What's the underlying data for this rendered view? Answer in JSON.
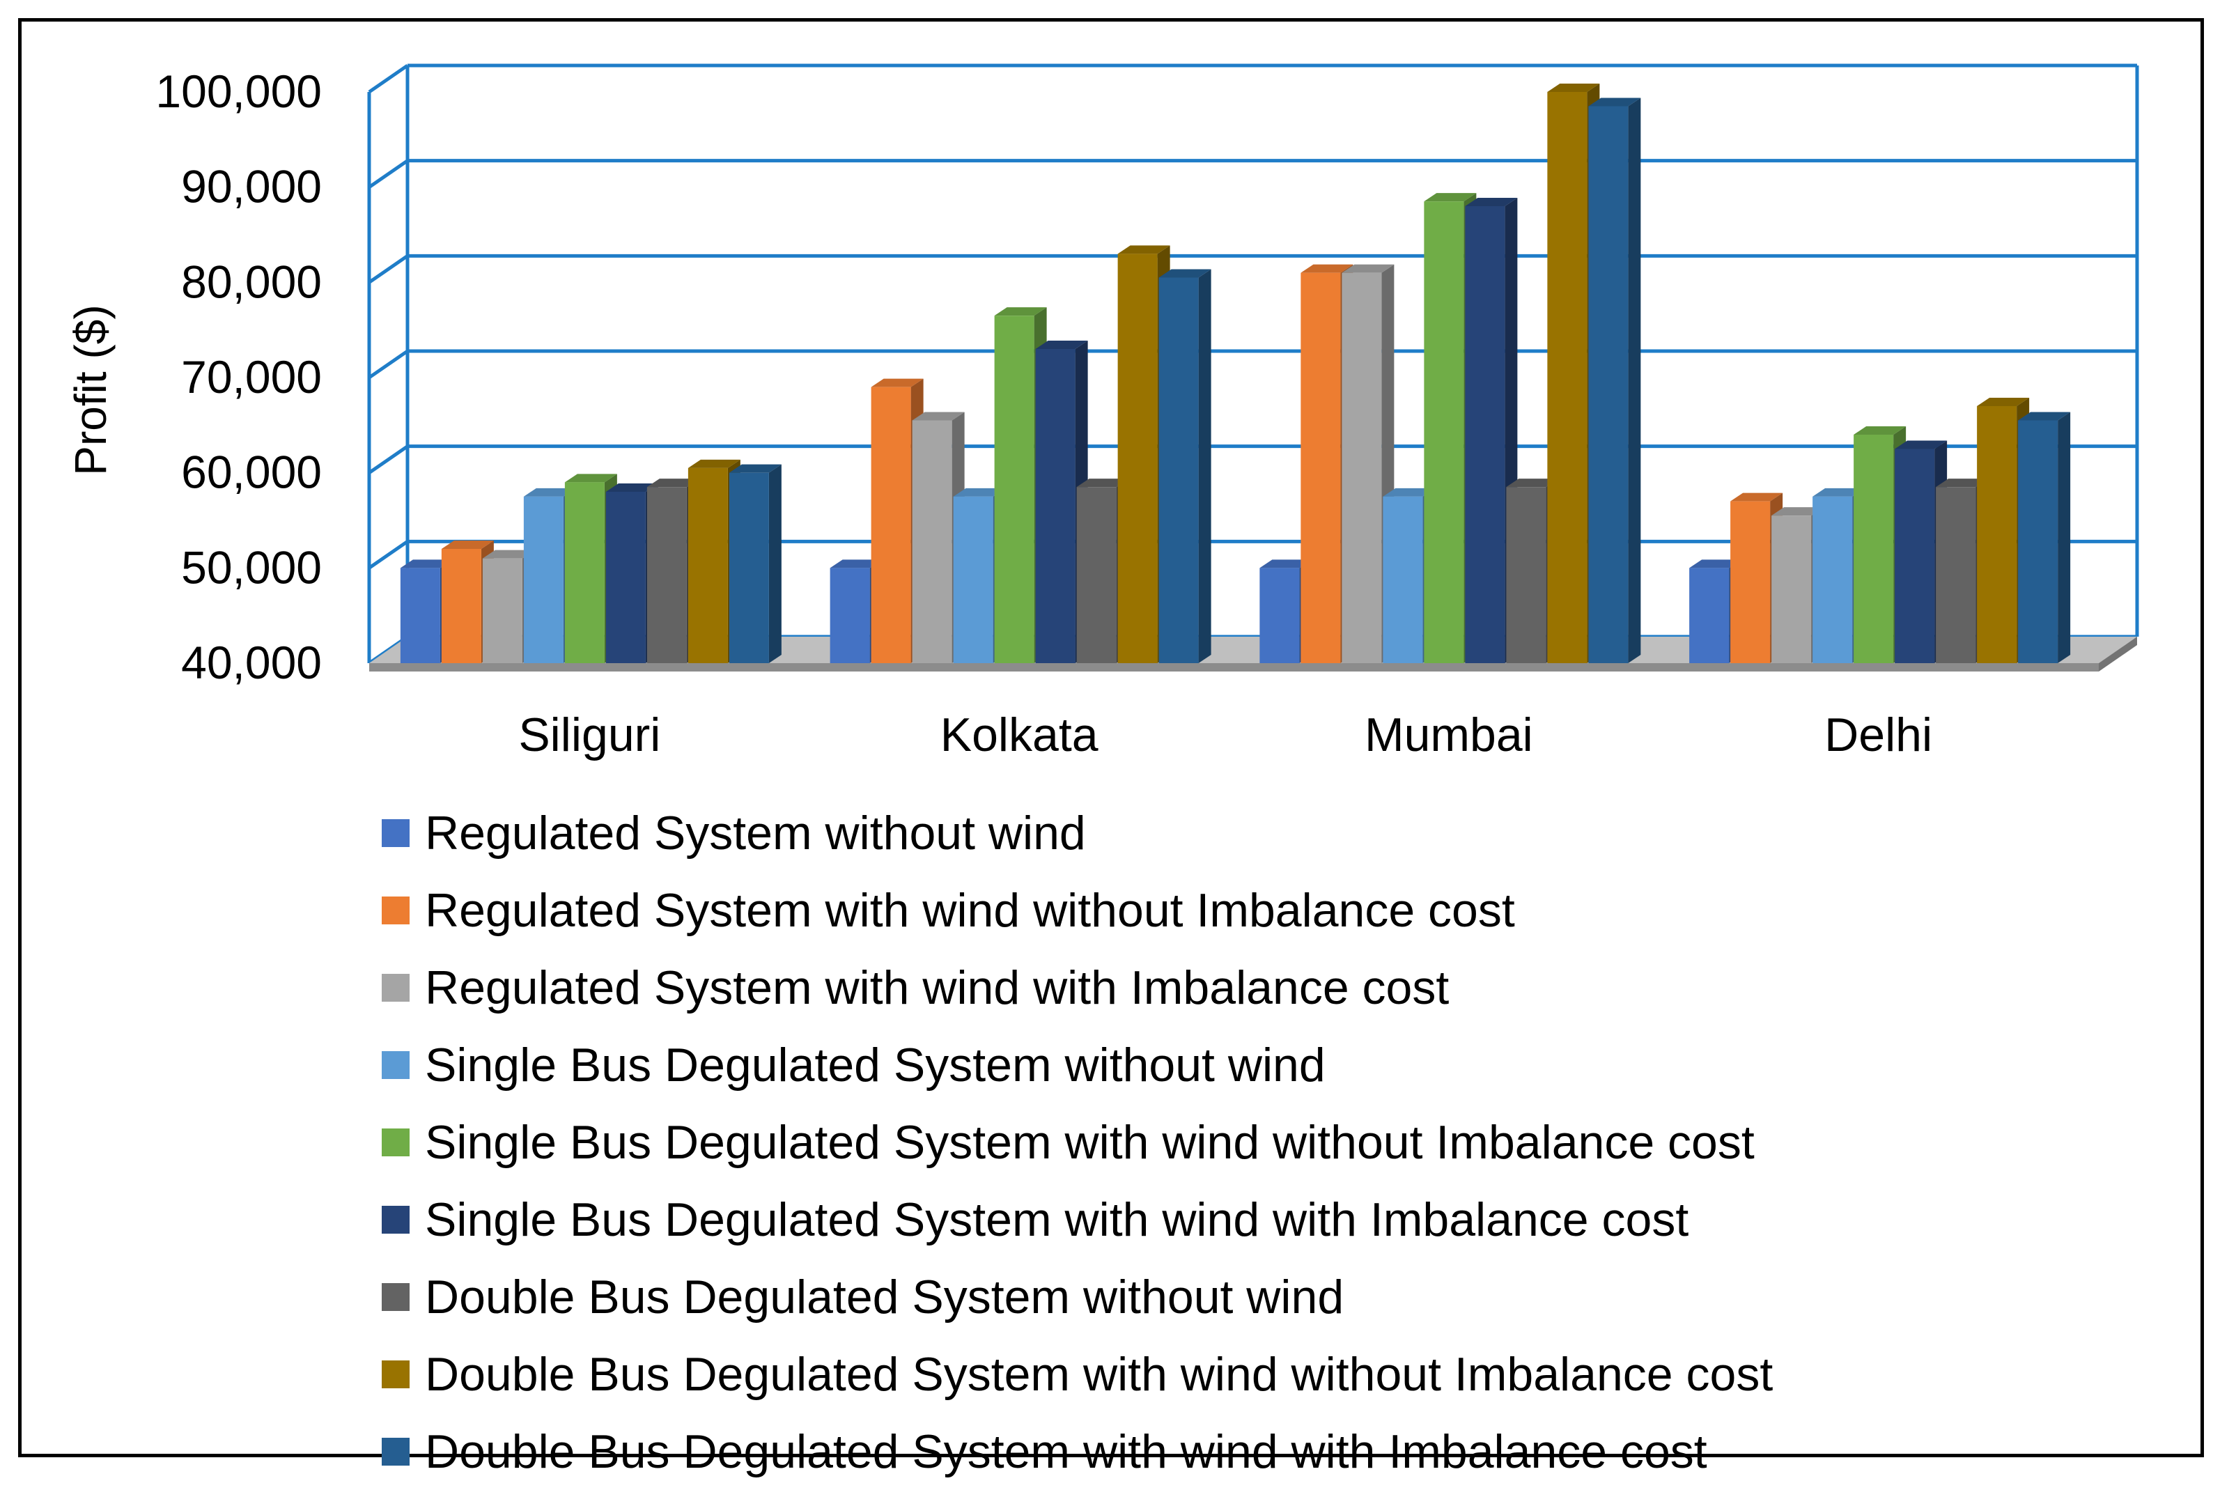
{
  "chart_data": {
    "type": "bar",
    "title": "",
    "xlabel": "",
    "ylabel": "Profit ($)",
    "ylim": [
      40000,
      100000
    ],
    "yticks": [
      "40,000",
      "50,000",
      "60,000",
      "70,000",
      "80,000",
      "90,000",
      "100,000"
    ],
    "ytick_values": [
      40000,
      50000,
      60000,
      70000,
      80000,
      90000,
      100000
    ],
    "categories": [
      "Siliguri",
      "Kolkata",
      "Mumbai",
      "Delhi"
    ],
    "grid": true,
    "legend_position": "bottom",
    "series": [
      {
        "name": "Regulated System without wind",
        "color": "#4472C4",
        "values": [
          50000,
          50000,
          50000,
          50000
        ]
      },
      {
        "name": "Regulated System with wind without Imbalance cost",
        "color": "#ED7D31",
        "values": [
          52000,
          69000,
          81000,
          57000
        ]
      },
      {
        "name": "Regulated System with wind with Imbalance cost",
        "color": "#A5A5A5",
        "values": [
          51000,
          65500,
          81000,
          55500
        ]
      },
      {
        "name": "Single Bus Degulated System without wind",
        "color": "#5B9BD5",
        "values": [
          57500,
          57500,
          57500,
          57500
        ]
      },
      {
        "name": "Single Bus Degulated System with wind without Imbalance cost",
        "color": "#70AD47",
        "values": [
          59000,
          76500,
          88500,
          64000
        ]
      },
      {
        "name": "Single Bus Degulated System with wind with Imbalance cost",
        "color": "#264478",
        "values": [
          58000,
          73000,
          88000,
          62500
        ]
      },
      {
        "name": "Double Bus Degulated System without wind",
        "color": "#636363",
        "values": [
          58500,
          58500,
          58500,
          58500
        ]
      },
      {
        "name": "Double Bus Degulated System with wind without Imbalance cost",
        "color": "#997300",
        "values": [
          60500,
          83000,
          100000,
          67000
        ]
      },
      {
        "name": "Double Bus Degulated System with wind with Imbalance cost",
        "color": "#255E91",
        "values": [
          60000,
          80500,
          98500,
          65500
        ]
      }
    ]
  }
}
